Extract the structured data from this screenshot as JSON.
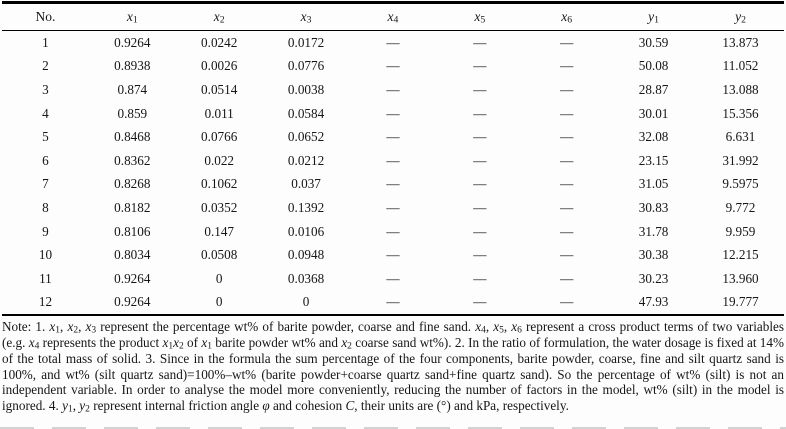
{
  "page": {
    "background": "#fdfdfd",
    "text_color": "#161616",
    "rule_color": "#000000"
  },
  "table": {
    "columns": [
      {
        "name": "no",
        "runs": [
          {
            "t": "No."
          }
        ]
      },
      {
        "name": "x1",
        "runs": [
          {
            "t": "x",
            "i": true
          },
          {
            "t": "1",
            "s": true
          }
        ]
      },
      {
        "name": "x2",
        "runs": [
          {
            "t": "x",
            "i": true
          },
          {
            "t": "2",
            "s": true
          }
        ]
      },
      {
        "name": "x3",
        "runs": [
          {
            "t": "x",
            "i": true
          },
          {
            "t": "3",
            "s": true
          }
        ]
      },
      {
        "name": "x4",
        "runs": [
          {
            "t": "x",
            "i": true
          },
          {
            "t": "4",
            "s": true
          }
        ]
      },
      {
        "name": "x5",
        "runs": [
          {
            "t": "x",
            "i": true
          },
          {
            "t": "5",
            "s": true
          }
        ]
      },
      {
        "name": "x6",
        "runs": [
          {
            "t": "x",
            "i": true
          },
          {
            "t": "6",
            "s": true
          }
        ]
      },
      {
        "name": "y1",
        "runs": [
          {
            "t": "y",
            "i": true
          },
          {
            "t": "1",
            "s": true
          }
        ]
      },
      {
        "name": "y2",
        "runs": [
          {
            "t": "y",
            "i": true
          },
          {
            "t": "2",
            "s": true
          }
        ]
      }
    ],
    "rows": [
      [
        "1",
        "0.9264",
        "0.0242",
        "0.0172",
        "—",
        "—",
        "—",
        "30.59",
        "13.873"
      ],
      [
        "2",
        "0.8938",
        "0.0026",
        "0.0776",
        "—",
        "—",
        "—",
        "50.08",
        "11.052"
      ],
      [
        "3",
        "0.874",
        "0.0514",
        "0.0038",
        "—",
        "—",
        "—",
        "28.87",
        "13.088"
      ],
      [
        "4",
        "0.859",
        "0.011",
        "0.0584",
        "—",
        "—",
        "—",
        "30.01",
        "15.356"
      ],
      [
        "5",
        "0.8468",
        "0.0766",
        "0.0652",
        "—",
        "—",
        "—",
        "32.08",
        "6.631"
      ],
      [
        "6",
        "0.8362",
        "0.022",
        "0.0212",
        "—",
        "—",
        "—",
        "23.15",
        "31.992"
      ],
      [
        "7",
        "0.8268",
        "0.1062",
        "0.037",
        "—",
        "—",
        "—",
        "31.05",
        "9.5975"
      ],
      [
        "8",
        "0.8182",
        "0.0352",
        "0.1392",
        "—",
        "—",
        "—",
        "30.83",
        "9.772"
      ],
      [
        "9",
        "0.8106",
        "0.147",
        "0.0106",
        "—",
        "—",
        "—",
        "31.78",
        "9.959"
      ],
      [
        "10",
        "0.8034",
        "0.0508",
        "0.0948",
        "—",
        "—",
        "—",
        "30.38",
        "12.215"
      ],
      [
        "11",
        "0.9264",
        "0",
        "0.0368",
        "—",
        "—",
        "—",
        "30.23",
        "13.960"
      ],
      [
        "12",
        "0.9264",
        "0",
        "0",
        "—",
        "—",
        "—",
        "47.93",
        "19.777"
      ]
    ]
  },
  "note": {
    "runs": [
      {
        "t": "Note: 1. "
      },
      {
        "t": "x",
        "i": true
      },
      {
        "t": "1",
        "s": true
      },
      {
        "t": ", "
      },
      {
        "t": "x",
        "i": true
      },
      {
        "t": "2",
        "s": true
      },
      {
        "t": ", "
      },
      {
        "t": "x",
        "i": true
      },
      {
        "t": "3",
        "s": true
      },
      {
        "t": " represent the percentage wt% of barite powder, coarse and fine sand. "
      },
      {
        "t": "x",
        "i": true
      },
      {
        "t": "4",
        "s": true
      },
      {
        "t": ", "
      },
      {
        "t": "x",
        "i": true
      },
      {
        "t": "5",
        "s": true
      },
      {
        "t": ", "
      },
      {
        "t": "x",
        "i": true
      },
      {
        "t": "6",
        "s": true
      },
      {
        "t": " represent a cross product terms of two variables (e.g. "
      },
      {
        "t": "x",
        "i": true
      },
      {
        "t": "4",
        "s": true
      },
      {
        "t": " represents the product "
      },
      {
        "t": "x",
        "i": true
      },
      {
        "t": "1",
        "s": true
      },
      {
        "t": "x",
        "i": true
      },
      {
        "t": "2",
        "s": true
      },
      {
        "t": " of "
      },
      {
        "t": "x",
        "i": true
      },
      {
        "t": "1",
        "s": true
      },
      {
        "t": " barite powder wt% and "
      },
      {
        "t": "x",
        "i": true
      },
      {
        "t": "2",
        "s": true
      },
      {
        "t": " coarse sand wt%). 2. In the ratio of formulation, the water dosage is fixed at 14% of the total mass of solid. 3. Since in the formula the sum percentage of the four components, barite powder, coarse, fine and silt quartz sand is 100%, and wt% (silt quartz sand)=100%–wt% (barite powder+coarse quartz sand+fine quartz sand). So the percentage of wt% (silt) is not an independent variable. In order to analyse the model more conveniently, reducing the number of factors in the model, wt% (silt) in the model is ignored. 4. "
      },
      {
        "t": "y",
        "i": true
      },
      {
        "t": "1",
        "s": true
      },
      {
        "t": ", "
      },
      {
        "t": "y",
        "i": true
      },
      {
        "t": "2",
        "s": true
      },
      {
        "t": " represent internal friction angle "
      },
      {
        "t": "φ",
        "i": true
      },
      {
        "t": " and cohesion "
      },
      {
        "t": "C",
        "i": true
      },
      {
        "t": ", their units are (°) and kPa, respectively."
      }
    ]
  }
}
